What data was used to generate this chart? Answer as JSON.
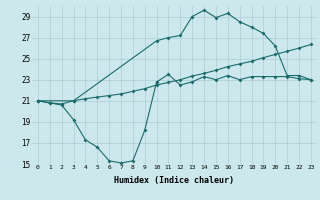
{
  "xlabel": "Humidex (Indice chaleur)",
  "xlim": [
    -0.5,
    23.5
  ],
  "ylim": [
    15,
    30
  ],
  "yticks": [
    15,
    17,
    19,
    21,
    23,
    25,
    27,
    29
  ],
  "xticks": [
    0,
    1,
    2,
    3,
    4,
    5,
    6,
    7,
    8,
    9,
    10,
    11,
    12,
    13,
    14,
    15,
    16,
    17,
    18,
    19,
    20,
    21,
    22,
    23
  ],
  "bg_color": "#cce8ec",
  "grid_color": "#aacdd4",
  "line_color": "#1a6b6b",
  "line1_x": [
    0,
    1,
    2,
    3,
    4,
    5,
    6,
    7,
    8,
    9,
    10,
    11,
    12,
    13,
    14,
    15,
    16,
    17,
    18,
    19,
    20,
    21,
    22,
    23
  ],
  "line1_y": [
    21.0,
    20.8,
    20.6,
    19.2,
    17.3,
    16.6,
    15.3,
    15.1,
    15.3,
    18.2,
    22.8,
    23.5,
    22.5,
    22.8,
    23.3,
    23.0,
    23.4,
    23.0,
    23.3,
    23.3,
    23.3,
    23.3,
    23.1,
    23.0
  ],
  "line2_x": [
    0,
    1,
    2,
    3,
    4,
    5,
    6,
    7,
    8,
    9,
    10,
    11,
    12,
    13,
    14,
    15,
    16,
    17,
    18,
    19,
    20,
    21,
    22,
    23
  ],
  "line2_y": [
    21.0,
    20.8,
    20.7,
    21.0,
    21.2,
    21.35,
    21.5,
    21.65,
    21.9,
    22.15,
    22.5,
    22.75,
    23.0,
    23.35,
    23.6,
    23.9,
    24.25,
    24.5,
    24.75,
    25.1,
    25.4,
    25.7,
    26.0,
    26.35
  ],
  "line3_x": [
    0,
    3,
    10,
    11,
    12,
    13,
    14,
    15,
    16,
    17,
    18,
    19,
    20,
    21,
    22,
    23
  ],
  "line3_y": [
    21.0,
    21.0,
    26.7,
    27.0,
    27.2,
    29.0,
    29.6,
    28.9,
    29.3,
    28.5,
    28.0,
    27.4,
    26.2,
    23.4,
    23.4,
    23.0
  ]
}
